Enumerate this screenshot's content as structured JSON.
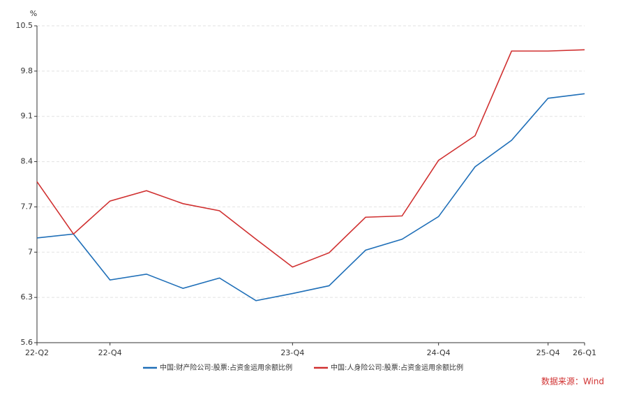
{
  "chart_data": {
    "type": "line",
    "y_unit": "%",
    "categories": [
      "22-Q2",
      null,
      "22-Q4",
      null,
      null,
      null,
      null,
      "23-Q4",
      null,
      null,
      null,
      "24-Q4",
      null,
      null,
      "25-Q4",
      "26-Q1"
    ],
    "series": [
      {
        "name": "中国:财产险公司:股票:占资金运用余额比例",
        "color": "#1f6fb8",
        "values": [
          7.22,
          7.28,
          6.57,
          6.66,
          6.44,
          6.6,
          6.25,
          6.36,
          6.48,
          7.03,
          7.2,
          7.55,
          8.32,
          8.73,
          9.38,
          9.45
        ]
      },
      {
        "name": "中国:人身险公司:股票:占资金运用余额比例",
        "color": "#d03030",
        "values": [
          8.09,
          7.28,
          7.79,
          7.95,
          7.75,
          7.64,
          7.2,
          6.77,
          6.99,
          7.54,
          7.56,
          8.42,
          8.8,
          10.11,
          10.11,
          10.13
        ]
      }
    ],
    "ylim": [
      5.6,
      10.5
    ],
    "yticks": [
      5.6,
      6.3,
      7,
      7.7,
      8.4,
      9.1,
      9.8,
      10.5
    ],
    "grid": true,
    "legend": "bottom",
    "source": "数据来源：Wind"
  }
}
